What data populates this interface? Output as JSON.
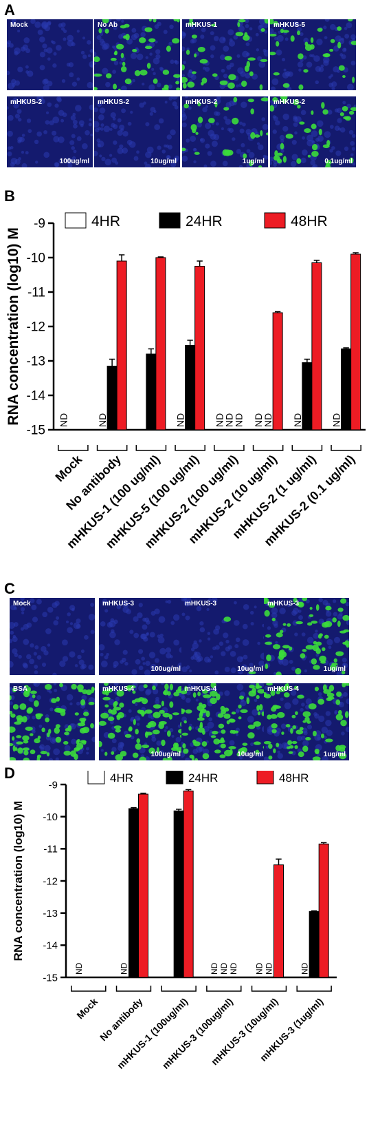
{
  "panels": {
    "A": {
      "letter": "A",
      "images": [
        {
          "label": "Mock",
          "conc": "",
          "green": 0.0
        },
        {
          "label": "No Ab",
          "conc": "",
          "green": 0.35
        },
        {
          "label": "mHKUS-1",
          "conc": "",
          "green": 0.28
        },
        {
          "label": "mHKUS-5",
          "conc": "",
          "green": 0.25
        },
        {
          "label": "mHKUS-2",
          "conc": "100ug/ml",
          "green": 0.0
        },
        {
          "label": "mHKUS-2",
          "conc": "10ug/ml",
          "green": 0.0
        },
        {
          "label": "mHKUS-2",
          "conc": "1ug/ml",
          "green": 0.22
        },
        {
          "label": "mHKUS-2",
          "conc": "0.1ug/ml",
          "green": 0.3
        }
      ]
    },
    "B": {
      "letter": "B"
    },
    "C": {
      "letter": "C",
      "images": [
        {
          "label": "Mock",
          "conc": "",
          "green": 0.0
        },
        {
          "label": "mHKUS-3",
          "conc": "100ug/ml",
          "green": 0.0
        },
        {
          "label": "mHKUS-3",
          "conc": "10ug/ml",
          "green": 0.02
        },
        {
          "label": "mHKUS-3",
          "conc": "1ug/ml",
          "green": 0.55
        },
        {
          "label": "BSA",
          "conc": "",
          "green": 0.75
        },
        {
          "label": "mHKUS-4",
          "conc": "100ug/ml",
          "green": 0.75
        },
        {
          "label": "mHKUS-4",
          "conc": "10ug/ml",
          "green": 0.75
        },
        {
          "label": "mHKUS-4",
          "conc": "1ug/ml",
          "green": 0.6
        }
      ]
    },
    "D": {
      "letter": "D"
    }
  },
  "chart_data": [
    {
      "type": "bar",
      "ylabel": "RNA concentration (log10) M",
      "ylim": [
        -15,
        -9
      ],
      "yticks": [
        "-9",
        "-10",
        "-11",
        "-12",
        "-13",
        "-14",
        "-15"
      ],
      "categories": [
        "Mock",
        "No antibody",
        "mHKUS-1 (100 ug/ml)",
        "mHKUS-5 (100 ug/ml)",
        "mHKUS-2 (100 ug/ml)",
        "mHKUS-2 (10 ug/ml)",
        "mHKUS-2 (1 ug/ml)",
        "mHKUS-2 (0.1 ug/ml)"
      ],
      "series": [
        {
          "name": "4HR",
          "color": "#ffffff",
          "values": [
            null,
            null,
            null,
            null,
            null,
            null,
            null,
            null
          ]
        },
        {
          "name": "24HR",
          "color": "#000000",
          "values": [
            null,
            -13.15,
            -12.8,
            -12.55,
            null,
            null,
            -13.05,
            -12.65
          ],
          "errors": [
            0,
            0.2,
            0.15,
            0.15,
            0,
            0,
            0.1,
            0.03
          ]
        },
        {
          "name": "48HR",
          "color": "#ed1c24",
          "values": [
            null,
            -10.1,
            -10.0,
            -10.25,
            null,
            -11.6,
            -10.15,
            -9.9
          ],
          "errors": [
            0,
            0.18,
            0.02,
            0.15,
            0,
            0.03,
            0.07,
            0.04
          ]
        }
      ],
      "nd_labels": [
        [
          "ND"
        ],
        [
          "ND"
        ],
        [],
        [
          "ND"
        ],
        [
          "ND",
          "ND",
          "ND"
        ],
        [
          "ND",
          "ND"
        ],
        [
          "ND"
        ],
        [
          "ND"
        ]
      ],
      "legend_position": "top"
    },
    {
      "type": "bar",
      "ylabel": "RNA concentration (log10) M",
      "ylim": [
        -15,
        -9
      ],
      "yticks": [
        "-9",
        "-10",
        "-11",
        "-12",
        "-13",
        "-14",
        "-15"
      ],
      "categories": [
        "Mock",
        "No antibody",
        "mHKUS-1 (100ug/ml)",
        "mHKUS-3 (100ug/ml)",
        "mHKUS-3 (10ug/ml)",
        "mHKUS-3 (1ug/ml)"
      ],
      "series": [
        {
          "name": "4HR",
          "color": "#ffffff",
          "values": [
            null,
            null,
            null,
            null,
            null,
            null
          ]
        },
        {
          "name": "24HR",
          "color": "#000000",
          "values": [
            null,
            -9.75,
            -9.82,
            null,
            null,
            -12.95
          ],
          "errors": [
            0,
            0.03,
            0.05,
            0,
            0,
            0.02
          ]
        },
        {
          "name": "48HR",
          "color": "#ed1c24",
          "values": [
            null,
            -9.3,
            -9.2,
            null,
            -11.5,
            -10.85
          ],
          "errors": [
            0,
            0.03,
            0.04,
            0,
            0.18,
            0.04
          ]
        }
      ],
      "nd_labels": [
        [
          "ND"
        ],
        [
          "ND"
        ],
        [],
        [
          "ND",
          "ND",
          "ND"
        ],
        [
          "ND",
          "ND"
        ],
        [
          "ND"
        ]
      ],
      "legend_position": "top"
    }
  ]
}
